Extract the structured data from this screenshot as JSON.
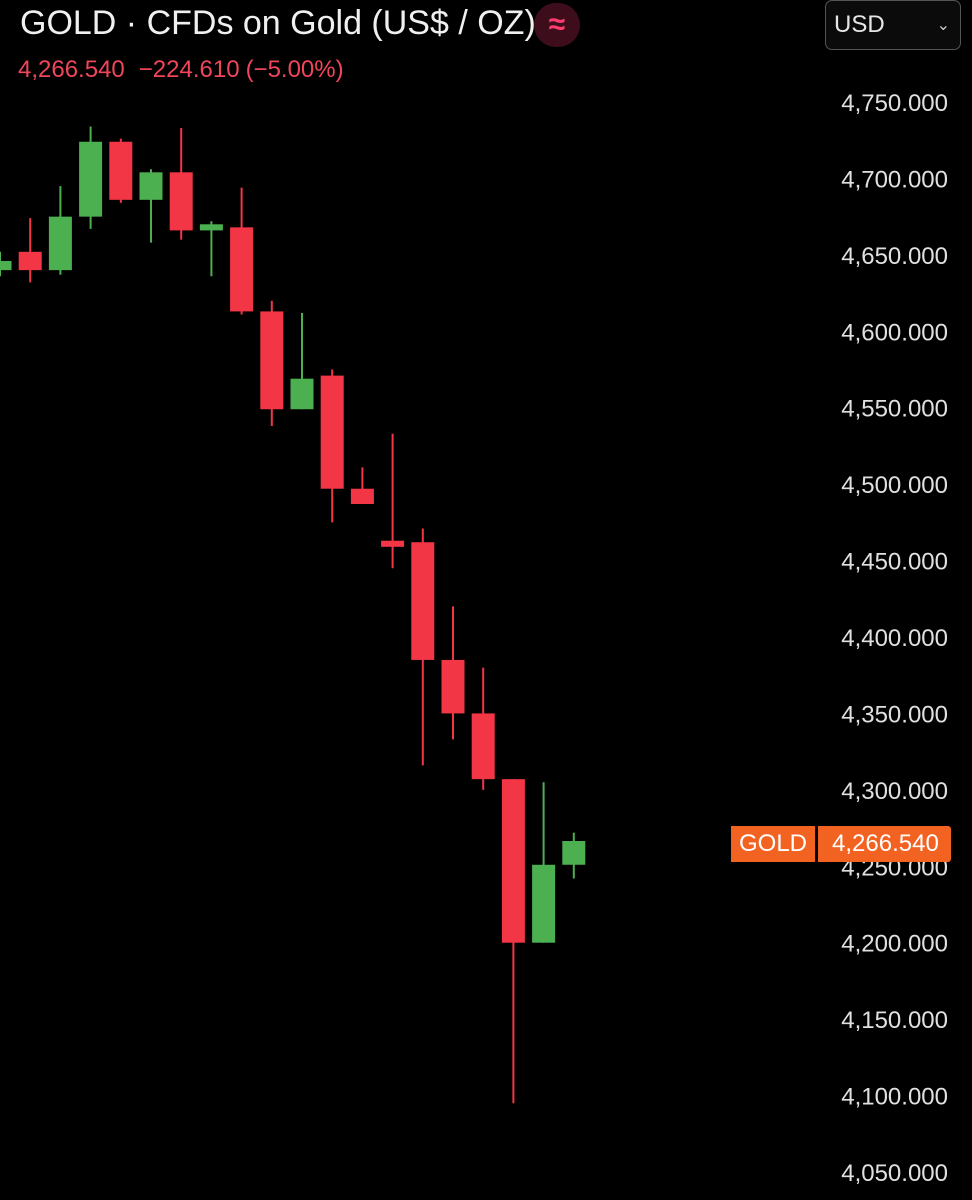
{
  "header": {
    "title": "GOLD · CFDs on Gold (US$ / OZ)",
    "badge_glyph": "≈",
    "badge_icon": "approx-wave-icon",
    "last_price": "4,266.540",
    "change": "−224.610",
    "change_pct": "(−5.00%)",
    "currency": "USD",
    "currency_icon": "chevron-down-icon"
  },
  "price_tag": {
    "symbol": "GOLD",
    "value": "4,266.540"
  },
  "colors": {
    "up": "#4caf50",
    "down": "#f23645",
    "tag": "#f26322",
    "background": "#000000"
  },
  "chart_data": {
    "type": "candlestick",
    "title": "GOLD · CFDs on Gold (US$ / OZ)",
    "xlabel": "",
    "ylabel": "",
    "ylim": [
      4030,
      4790
    ],
    "y_axis_position": "right",
    "grid": false,
    "y_ticks": [
      4750,
      4700,
      4650,
      4600,
      4550,
      4500,
      4450,
      4400,
      4350,
      4300,
      4250,
      4200,
      4150,
      4100,
      4050
    ],
    "y_tick_labels": [
      "4,750.000",
      "4,700.000",
      "4,650.000",
      "4,600.000",
      "4,550.000",
      "4,500.000",
      "4,450.000",
      "4,400.000",
      "4,350.000",
      "4,300.000",
      "4,250.000",
      "4,200.000",
      "4,150.000",
      "4,100.000",
      "4,050.000"
    ],
    "candles": [
      {
        "open": 4640,
        "high": 4652,
        "low": 4636,
        "close": 4646
      },
      {
        "open": 4652,
        "high": 4674,
        "low": 4632,
        "close": 4640
      },
      {
        "open": 4640,
        "high": 4695,
        "low": 4637,
        "close": 4675
      },
      {
        "open": 4675,
        "high": 4734,
        "low": 4667,
        "close": 4724
      },
      {
        "open": 4724,
        "high": 4726,
        "low": 4684,
        "close": 4686
      },
      {
        "open": 4686,
        "high": 4706,
        "low": 4658,
        "close": 4704
      },
      {
        "open": 4704,
        "high": 4733,
        "low": 4660,
        "close": 4666
      },
      {
        "open": 4666,
        "high": 4672,
        "low": 4636,
        "close": 4670
      },
      {
        "open": 4668,
        "high": 4694,
        "low": 4611,
        "close": 4613
      },
      {
        "open": 4613,
        "high": 4620,
        "low": 4538,
        "close": 4549
      },
      {
        "open": 4549,
        "high": 4612,
        "low": 4549,
        "close": 4569
      },
      {
        "open": 4571,
        "high": 4575,
        "low": 4475,
        "close": 4497
      },
      {
        "open": 4497,
        "high": 4511,
        "low": 4487,
        "close": 4487
      },
      {
        "open": 4463,
        "high": 4533,
        "low": 4445,
        "close": 4459
      },
      {
        "open": 4462,
        "high": 4471,
        "low": 4316,
        "close": 4385
      },
      {
        "open": 4385,
        "high": 4420,
        "low": 4333,
        "close": 4350
      },
      {
        "open": 4350,
        "high": 4380,
        "low": 4300,
        "close": 4307
      },
      {
        "open": 4307,
        "high": 4307,
        "low": 4095,
        "close": 4200
      },
      {
        "open": 4200,
        "high": 4305,
        "low": 4200,
        "close": 4251
      },
      {
        "open": 4251,
        "high": 4272,
        "low": 4242,
        "close": 4266.54
      }
    ],
    "last_price": 4266.54
  }
}
